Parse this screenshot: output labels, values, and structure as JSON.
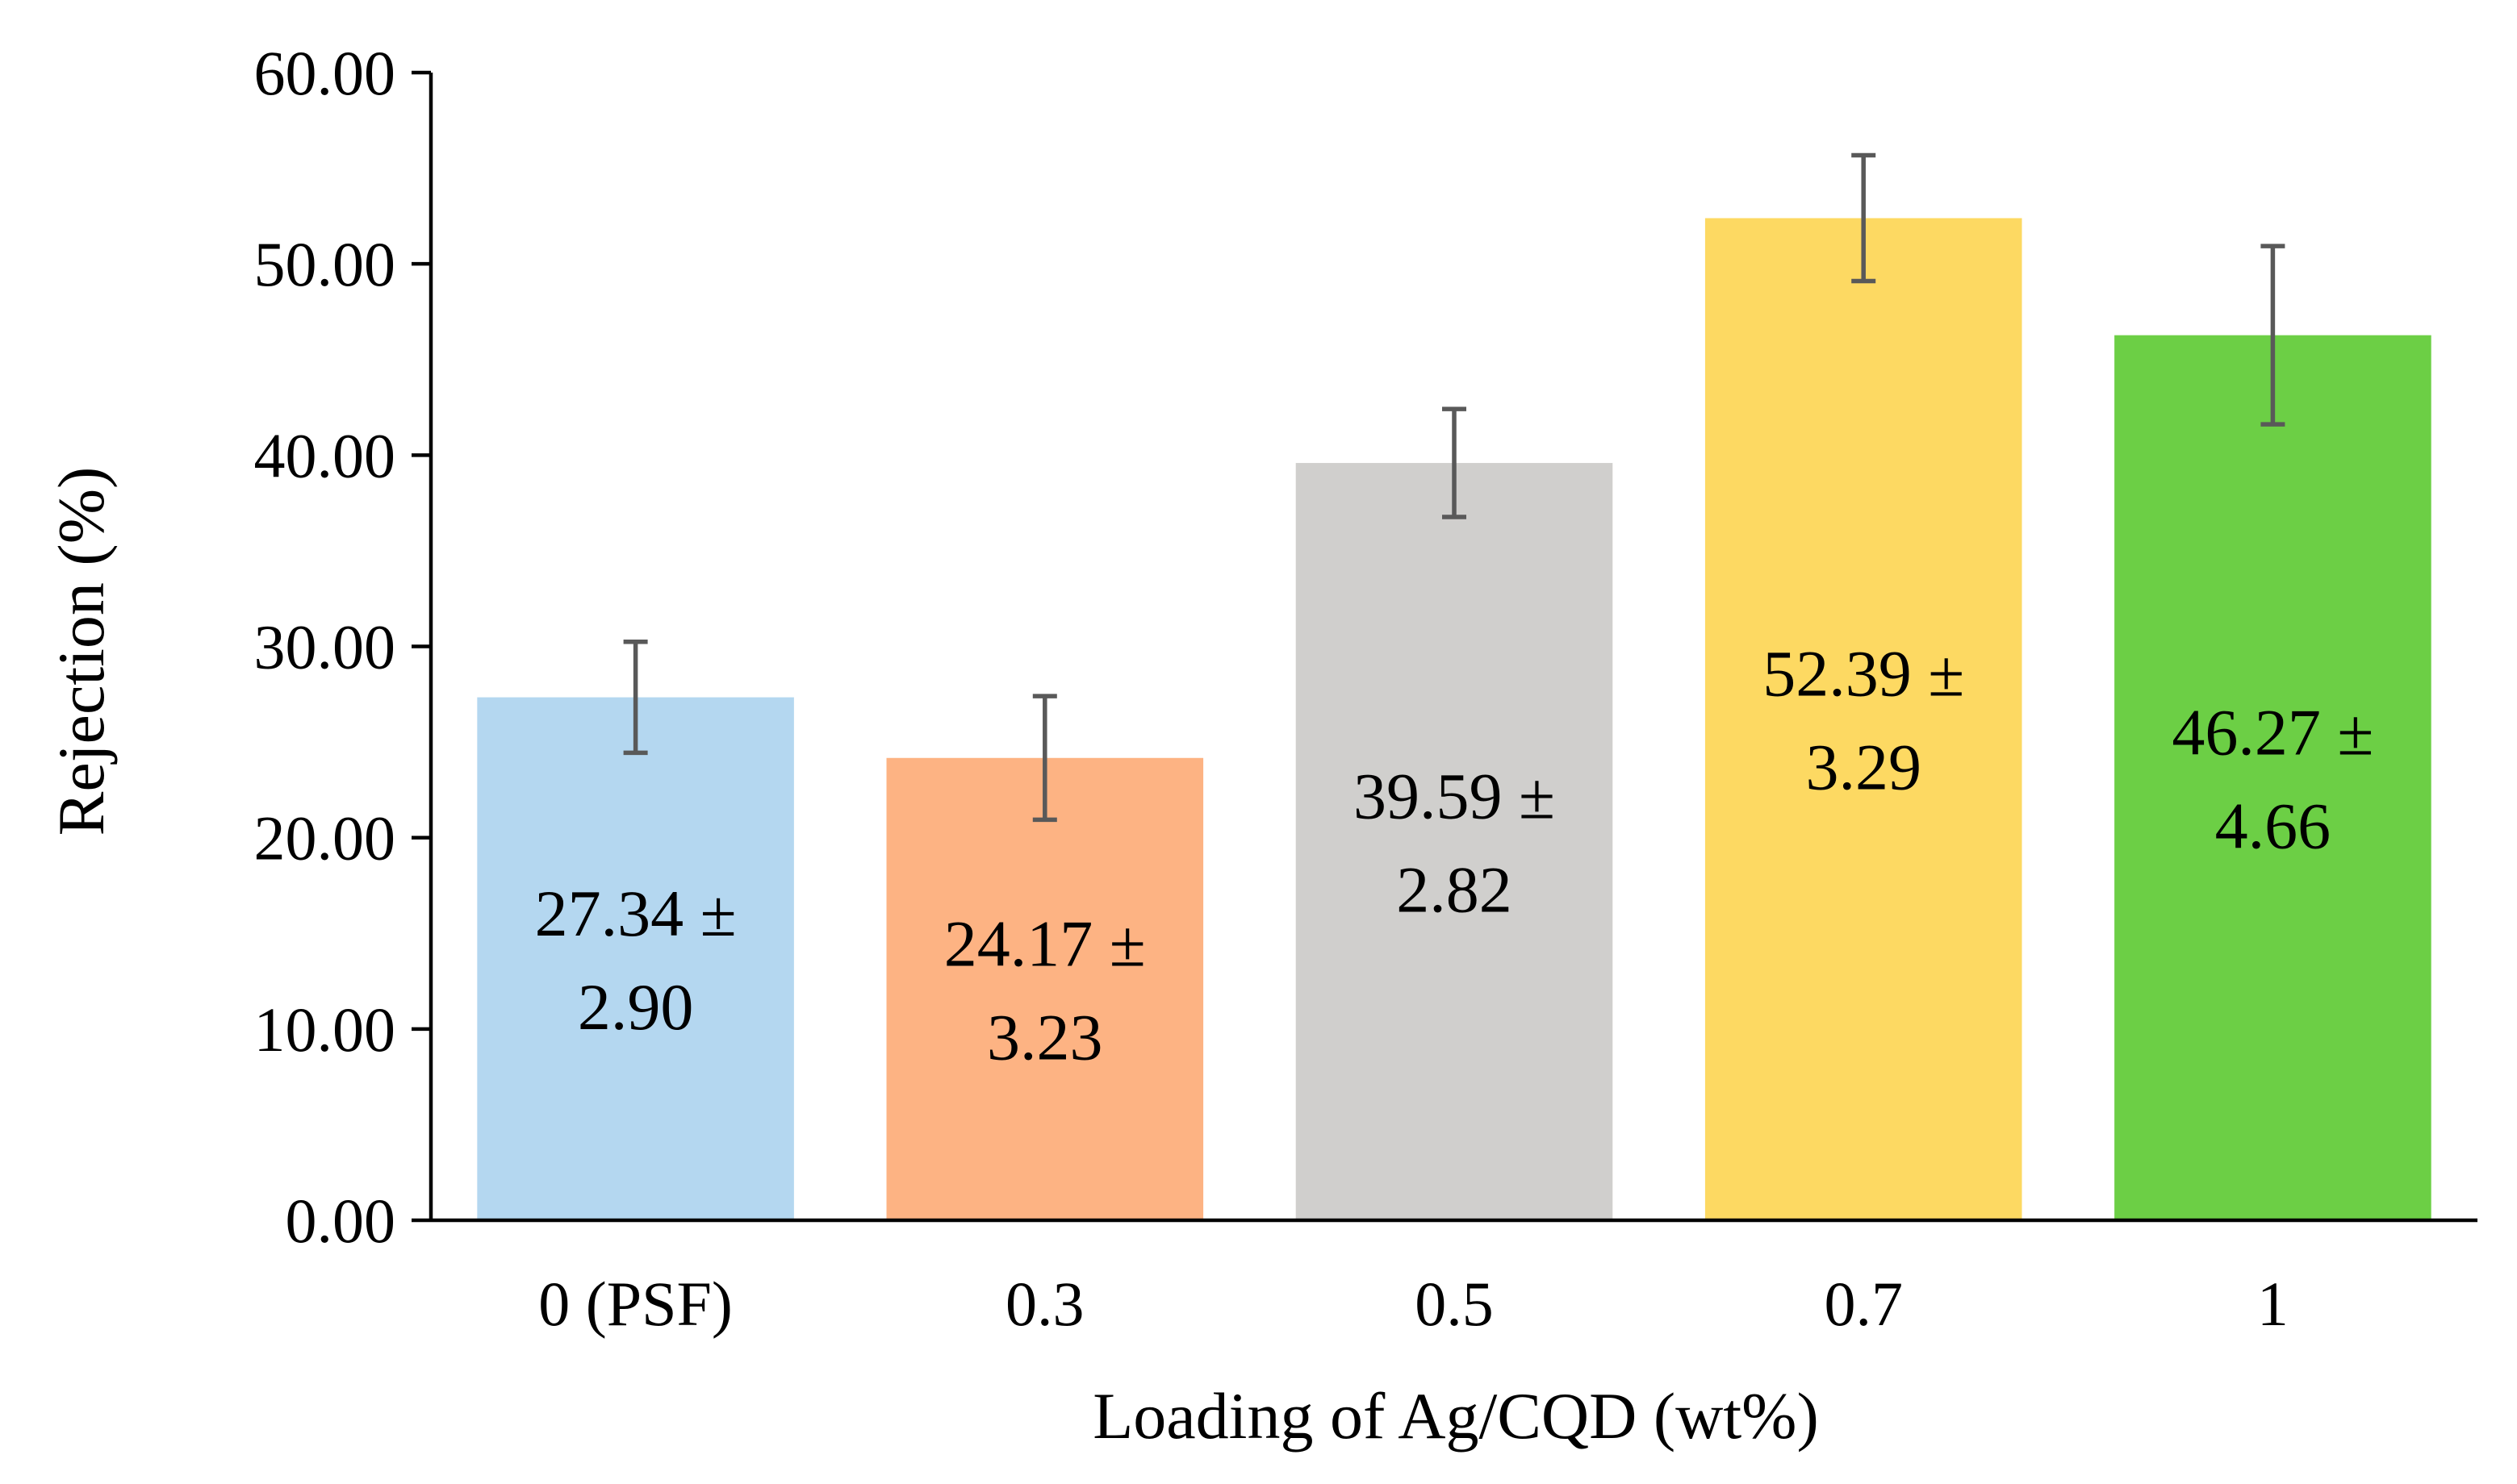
{
  "chart_data": {
    "type": "bar",
    "title": "",
    "xlabel": "Loading of Ag/CQD (wt%)",
    "ylabel": "Rejection (%)",
    "categories": [
      "0 (PSF)",
      "0.3",
      "0.5",
      "0.7",
      "1"
    ],
    "values": [
      27.34,
      24.17,
      39.59,
      52.39,
      46.27
    ],
    "errors": [
      2.9,
      3.23,
      2.82,
      3.29,
      4.66
    ],
    "value_labels": [
      [
        "27.34 ±",
        "2.90"
      ],
      [
        "24.17 ±",
        "3.23"
      ],
      [
        "39.59 ±",
        "2.82"
      ],
      [
        "52.39 ±",
        "3.29"
      ],
      [
        "46.27 ±",
        "4.66"
      ]
    ],
    "colors": [
      "#B4D7F0",
      "#FDB383",
      "#D0CFCD",
      "#FDD962",
      "#6CCF45"
    ],
    "error_bar_color": "#595959",
    "ylim": [
      0,
      60
    ],
    "yticks": [
      "0.00",
      "10.00",
      "20.00",
      "30.00",
      "40.00",
      "50.00",
      "60.00"
    ],
    "grid": false,
    "legend": "none"
  }
}
